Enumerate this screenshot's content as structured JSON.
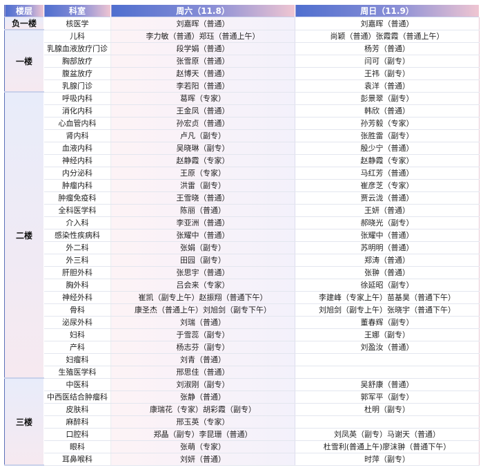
{
  "header": {
    "floor": "楼层",
    "dept": "科室",
    "sat": "周六（11.8）",
    "sun": "周日（11.9）"
  },
  "floors": [
    {
      "name": "负一楼",
      "rows": [
        {
          "dept": "核医学",
          "sat": "刘嘉晖（普通）",
          "sun": "刘嘉晖（普通）"
        }
      ]
    },
    {
      "name": "一楼",
      "rows": [
        {
          "dept": "儿科",
          "sat": "李力敏（普通）郑珏（普通上午）",
          "sun": "尚颖（普通）张霞霞（普通上午）"
        },
        {
          "dept": "乳腺血液放疗门诊",
          "sat": "段学娟（普通）",
          "sun": "杨芳（普通）"
        },
        {
          "dept": "胸部放疗",
          "sat": "张雪原（普通）",
          "sun": "闫可（副专）"
        },
        {
          "dept": "腹盆放疗",
          "sat": "赵博天（普通）",
          "sun": "王祎（副专）"
        },
        {
          "dept": "乳腺门诊",
          "sat": "李若阳（普通）",
          "sun": "袁洋（普通）"
        }
      ]
    },
    {
      "name": "二楼",
      "rows": [
        {
          "dept": "呼吸内科",
          "sat": "葛晖（专家）",
          "sun": "彭景翠（副专）"
        },
        {
          "dept": "消化内科",
          "sat": "王金凤（普通）",
          "sun": "韩欣（普通）"
        },
        {
          "dept": "心血管内科",
          "sat": "孙宏贞（普通）",
          "sun": "孙芳毅（专家）"
        },
        {
          "dept": "肾内科",
          "sat": "卢凡（副专）",
          "sun": "张胜雷（副专）"
        },
        {
          "dept": "血液内科",
          "sat": "吴晓琳（副专）",
          "sun": "殷少宁（普通）"
        },
        {
          "dept": "神经内科",
          "sat": "赵静霞（专家）",
          "sun": "赵静霞（专家）"
        },
        {
          "dept": "内分泌科",
          "sat": "王原（专家）",
          "sun": "马红芳（普通）"
        },
        {
          "dept": "肿瘤内科",
          "sat": "洪雷（副专）",
          "sun": "崔彦芝（专家）"
        },
        {
          "dept": "肿瘤免疫科",
          "sat": "王雪晓（普通）",
          "sun": "贾云泷（普通）"
        },
        {
          "dept": "全科医学科",
          "sat": "陈丽（普通）",
          "sun": "王妍（普通）"
        },
        {
          "dept": "介入科",
          "sat": "李亚洲（普通）",
          "sun": "郝晓光（副专）"
        },
        {
          "dept": "感染性疾病科",
          "sat": "张耀中（普通）",
          "sun": "张耀中（普通）"
        },
        {
          "dept": "外二科",
          "sat": "张娟（副专）",
          "sun": "苏明明（普通）"
        },
        {
          "dept": "外三科",
          "sat": "田园（副专）",
          "sun": "郑涛（普通）"
        },
        {
          "dept": "肝胆外科",
          "sat": "张思宇（普通）",
          "sun": "张翀（普通）"
        },
        {
          "dept": "胸外科",
          "sat": "吕会来（专家）",
          "sun": "徐延昭（副专）"
        },
        {
          "dept": "神经外科",
          "sat": "崔凯（副专上午）赵振翔（普通下午）",
          "sun": "李建峰（专家上午）苗基昊（普通下午）"
        },
        {
          "dept": "骨科",
          "sat": "康圣杰（普通上午）刘旭剑（副专下午）",
          "sun": "刘旭剑（副专上午）张晓宇（普通下午）"
        },
        {
          "dept": "泌尿外科",
          "sat": "刘瑞（普通）",
          "sun": "董春辉（副专）"
        },
        {
          "dept": "妇科",
          "sat": "于雪蕊（副专）",
          "sun": "王娜（副专）"
        },
        {
          "dept": "产科",
          "sat": "杨志芬（副专）",
          "sun": "刘盈汝（普通）"
        },
        {
          "dept": "妇瘤科",
          "sat": "刘青（普通）",
          "sun": ""
        },
        {
          "dept": "生殖医学科",
          "sat": "邢思佳（普通）",
          "sun": ""
        }
      ]
    },
    {
      "name": "三楼",
      "rows": [
        {
          "dept": "中医科",
          "sat": "刘淑刚（副专）",
          "sun": "吴舒康（普通）"
        },
        {
          "dept": "中西医结合肿瘤科",
          "sat": "张静（普通）",
          "sun": "郭军平（副专）"
        },
        {
          "dept": "皮肤科",
          "sat": "康瑞花（专家）胡彩霞（副专）",
          "sun": "杜明（副专）"
        },
        {
          "dept": "麻醉科",
          "sat": "邢玉英（专家）",
          "sun": ""
        },
        {
          "dept": "口腔科",
          "sat": "郑晶（副专）李昆珊（普通）",
          "sun": "刘凤英（副专）马谢天（普通）"
        },
        {
          "dept": "眼科",
          "sat": "张萌（专家）",
          "sun": "杜雪利(普通上午)廖沫翀（普通下午）"
        },
        {
          "dept": "耳鼻喉科",
          "sat": "刘妍（普通）",
          "sun": "时萍（副专）"
        }
      ]
    }
  ]
}
